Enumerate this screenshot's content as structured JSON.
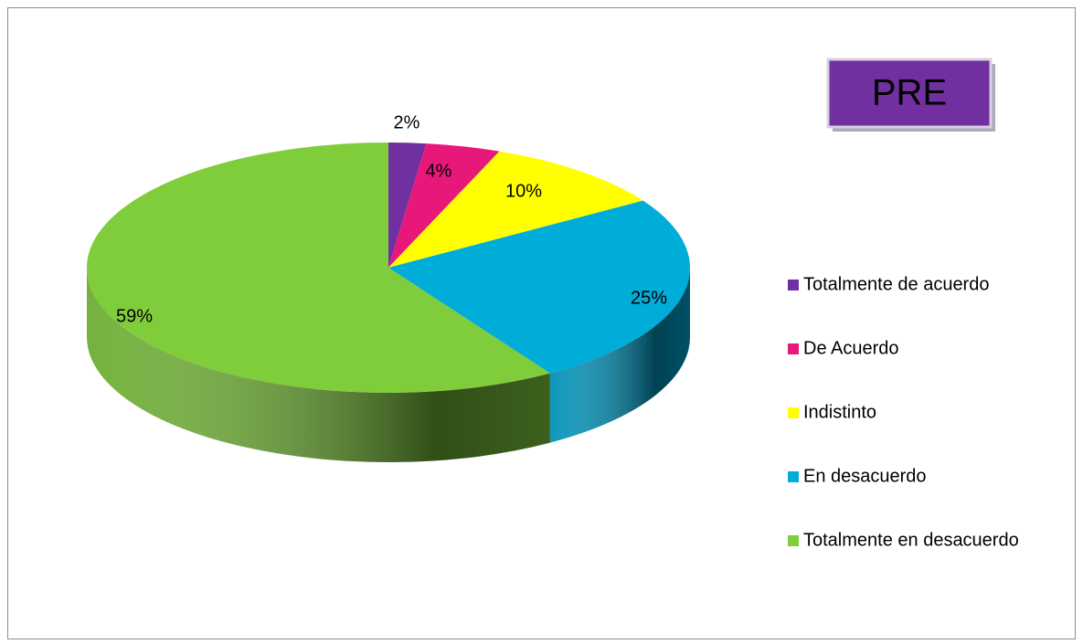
{
  "chart_data": {
    "type": "pie",
    "title": "PRE",
    "categories": [
      "Totalmente de acuerdo",
      "De Acuerdo",
      "Indistinto",
      "En desacuerdo",
      "Totalmente en desacuerdo"
    ],
    "values": [
      2,
      4,
      10,
      25,
      59
    ],
    "value_labels": [
      "2%",
      "4%",
      "10%",
      "25%",
      "59%"
    ],
    "colors": [
      "#7030a0",
      "#e8177a",
      "#ffff00",
      "#00acd8",
      "#80cd3c"
    ],
    "legend": "right"
  }
}
